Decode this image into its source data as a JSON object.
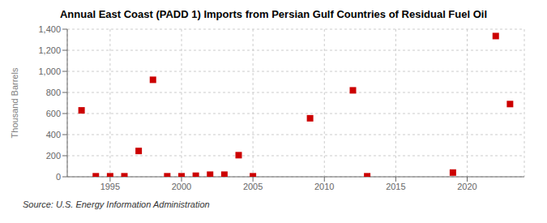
{
  "chart_data": {
    "type": "scatter",
    "title": "Annual East Coast (PADD 1) Imports from Persian Gulf Countries of Residual Fuel Oil",
    "y_label": "Thousand Barrels",
    "annotations": [
      "Source: U.S. Energy Information Administration"
    ],
    "x": [
      1993,
      1994,
      1995,
      1996,
      1997,
      1998,
      1999,
      2000,
      2001,
      2002,
      2003,
      2004,
      2005,
      2009,
      2012,
      2013,
      2019,
      2022,
      2023
    ],
    "values": [
      630,
      5,
      5,
      5,
      245,
      920,
      5,
      5,
      10,
      20,
      20,
      205,
      5,
      555,
      820,
      5,
      40,
      1335,
      690
    ],
    "color": "#cc0000",
    "marker": "square",
    "xlim": [
      1992,
      2024
    ],
    "xticks": [
      1995,
      2000,
      2005,
      2010,
      2015,
      2020
    ],
    "ylim": [
      0,
      1400
    ],
    "yticks": [
      0,
      200,
      400,
      600,
      800,
      {
        "value": 1000,
        "label": "1,000"
      },
      {
        "value": 1200,
        "label": "1,200"
      },
      {
        "value": 1400,
        "label": "1,400"
      }
    ],
    "grid": true
  }
}
